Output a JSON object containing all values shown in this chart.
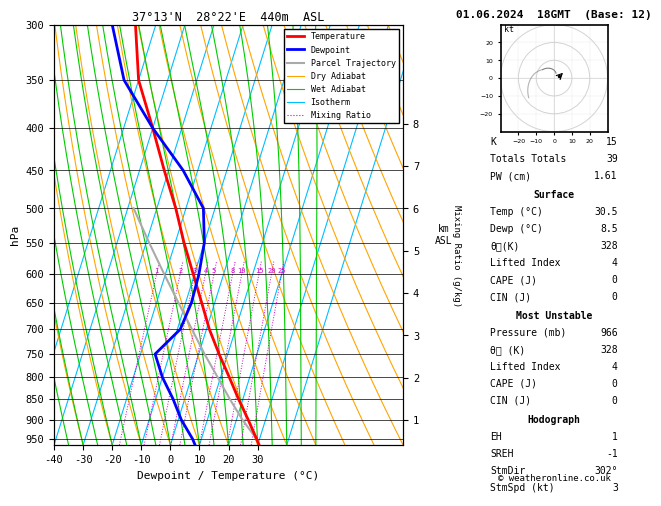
{
  "title_left": "37°13'N  28°22'E  440m  ASL",
  "title_right": "01.06.2024  18GMT  (Base: 12)",
  "xlabel": "Dewpoint / Temperature (°C)",
  "ylabel_left": "hPa",
  "pressure_levels": [
    300,
    350,
    400,
    450,
    500,
    550,
    600,
    650,
    700,
    750,
    800,
    850,
    900,
    950
  ],
  "pressure_min": 300,
  "pressure_max": 966,
  "temp_min": -40,
  "temp_max": 35,
  "isotherm_color": "#00bfff",
  "dry_adiabat_color": "#ffa500",
  "wet_adiabat_color": "#00cc00",
  "mixing_ratio_color": "#cc00cc",
  "temp_profile_color": "#ff0000",
  "dewpoint_profile_color": "#0000ff",
  "parcel_trajectory_color": "#aaaaaa",
  "mixing_ratio_values": [
    1,
    2,
    3,
    4,
    5,
    8,
    10,
    15,
    20,
    25
  ],
  "km_ticks": [
    1,
    2,
    3,
    4,
    5,
    6,
    7,
    8
  ],
  "temp_data": {
    "pressure": [
      966,
      950,
      900,
      850,
      800,
      750,
      700,
      650,
      600,
      550,
      500,
      450,
      400,
      350,
      300
    ],
    "temp": [
      30.5,
      29.0,
      24.0,
      18.5,
      13.0,
      7.0,
      1.0,
      -4.5,
      -10.5,
      -17.0,
      -23.5,
      -31.5,
      -40.0,
      -50.0,
      -57.0
    ]
  },
  "dewpoint_data": {
    "pressure": [
      966,
      950,
      900,
      850,
      800,
      750,
      700,
      650,
      600,
      550,
      500,
      450,
      400,
      350,
      300
    ],
    "temp": [
      8.5,
      7.0,
      1.0,
      -4.0,
      -10.0,
      -15.0,
      -9.0,
      -8.0,
      -8.5,
      -10.0,
      -14.0,
      -25.0,
      -40.0,
      -55.0,
      -65.0
    ]
  },
  "parcel_data": {
    "pressure": [
      966,
      950,
      900,
      850,
      800,
      750,
      700,
      650,
      600,
      550,
      500
    ],
    "temp": [
      30.5,
      29.0,
      22.0,
      15.5,
      9.0,
      2.0,
      -5.0,
      -12.5,
      -20.5,
      -29.0,
      -38.0
    ]
  },
  "stats": {
    "K": 15,
    "Totals_Totals": 39,
    "PW_cm": 1.61,
    "Surface": {
      "Temp_C": 30.5,
      "Dewp_C": 8.5,
      "theta_e_K": 328,
      "Lifted_Index": 4,
      "CAPE_J": 0,
      "CIN_J": 0
    },
    "Most_Unstable": {
      "Pressure_mb": 966,
      "theta_e_K": 328,
      "Lifted_Index": 4,
      "CAPE_J": 0,
      "CIN_J": 0
    },
    "Hodograph": {
      "EH": 1,
      "SREH": -1,
      "StmDir": 302,
      "StmSpd_kt": 3
    }
  },
  "legend_items": [
    {
      "label": "Temperature",
      "color": "#ff0000",
      "lw": 2.0,
      "ls": "solid"
    },
    {
      "label": "Dewpoint",
      "color": "#0000ff",
      "lw": 2.0,
      "ls": "solid"
    },
    {
      "label": "Parcel Trajectory",
      "color": "#aaaaaa",
      "lw": 1.5,
      "ls": "solid"
    },
    {
      "label": "Dry Adiabat",
      "color": "#ffa500",
      "lw": 0.8,
      "ls": "solid"
    },
    {
      "label": "Wet Adiabat",
      "color": "#00cc00",
      "lw": 0.8,
      "ls": "solid"
    },
    {
      "label": "Isotherm",
      "color": "#00bfff",
      "lw": 0.8,
      "ls": "solid"
    },
    {
      "label": "Mixing Ratio",
      "color": "#cc00cc",
      "lw": 0.8,
      "ls": "dotted"
    }
  ],
  "skew_factor": 45,
  "xtick_temps": [
    -40,
    -30,
    -20,
    -10,
    0,
    10,
    20,
    30
  ]
}
